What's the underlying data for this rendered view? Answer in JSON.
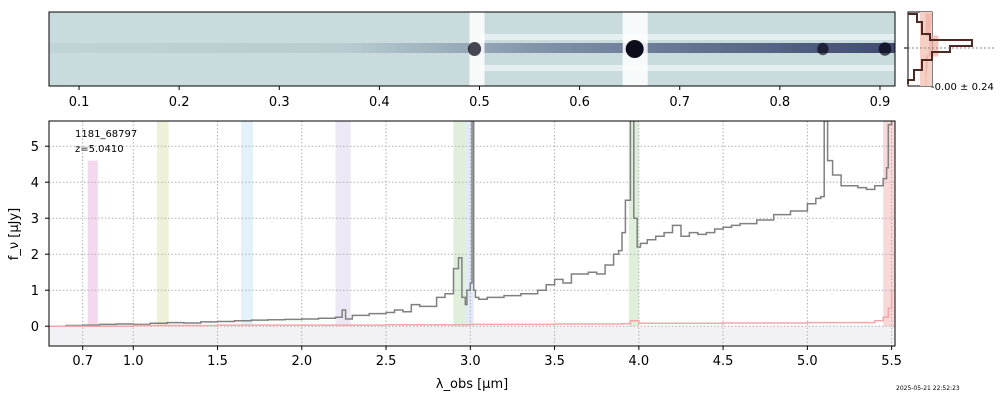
{
  "chart_data": [
    {
      "type": "image",
      "name": "2D spectrum",
      "x_ticks": [
        {
          "value": 0.1,
          "label": "0.1"
        },
        {
          "value": 0.2,
          "label": "0.2"
        },
        {
          "value": 0.3,
          "label": "0.3"
        },
        {
          "value": 0.4,
          "label": "0.4"
        },
        {
          "value": 0.5,
          "label": "0.5"
        },
        {
          "value": 0.6,
          "label": "0.6"
        },
        {
          "value": 0.7,
          "label": "0.7"
        },
        {
          "value": 0.8,
          "label": "0.8"
        },
        {
          "value": 0.9,
          "label": "0.9"
        }
      ],
      "xlim": [
        0.07,
        0.915
      ],
      "features": [
        {
          "x": 0.495,
          "strength": 0.6
        },
        {
          "x": 0.655,
          "strength": 1.0
        },
        {
          "x": 0.843,
          "strength": 0.45
        },
        {
          "x": 0.905,
          "strength": 0.55
        }
      ]
    },
    {
      "type": "histogram",
      "name": "residual histogram",
      "label": "-0.00 ± 0.24"
    },
    {
      "type": "line",
      "name": "1D spectrum",
      "title_id": "1181_68797",
      "redshift": "z=5.0410",
      "xlabel": "λ_obs [μm]",
      "ylabel": "f_ν [μJy]",
      "xlim": [
        0.5,
        5.52
      ],
      "ylim": [
        -0.55,
        5.7
      ],
      "x_ticks": [
        {
          "value": 0.7,
          "label": "0.7"
        },
        {
          "value": 1.0,
          "label": "1.0"
        },
        {
          "value": 1.5,
          "label": "1.5"
        },
        {
          "value": 2.0,
          "label": "2.0"
        },
        {
          "value": 2.5,
          "label": "2.5"
        },
        {
          "value": 3.0,
          "label": "3.0"
        },
        {
          "value": 3.5,
          "label": "3.5"
        },
        {
          "value": 4.0,
          "label": "4.0"
        },
        {
          "value": 4.5,
          "label": "4.5"
        },
        {
          "value": 5.0,
          "label": "5.0"
        },
        {
          "value": 5.5,
          "label": "5.5"
        }
      ],
      "y_ticks": [
        0,
        1,
        2,
        3,
        4,
        5
      ],
      "bands": [
        {
          "from": 0.73,
          "to": 0.79,
          "top": 4.6,
          "color": "#e6a8d8"
        },
        {
          "from": 1.14,
          "to": 1.21,
          "top": 5.7,
          "color": "#d9e0a8"
        },
        {
          "from": 1.64,
          "to": 1.71,
          "top": 5.7,
          "color": "#bfe0f5"
        },
        {
          "from": 2.2,
          "to": 2.29,
          "top": 5.7,
          "color": "#d6cde8"
        },
        {
          "from": 2.9,
          "to": 2.97,
          "top": 5.7,
          "color": "#b8dcb0"
        },
        {
          "from": 2.97,
          "to": 3.02,
          "top": 5.7,
          "color": "#bcd0ea"
        },
        {
          "from": 3.94,
          "to": 4.0,
          "top": 5.7,
          "color": "#b8dcb0"
        },
        {
          "from": 5.45,
          "to": 5.52,
          "top": 5.7,
          "color": "#f0a8a8"
        }
      ],
      "series": [
        {
          "name": "flux",
          "color": "#808080",
          "x": [
            0.5,
            0.6,
            0.7,
            0.8,
            0.9,
            1.0,
            1.1,
            1.2,
            1.3,
            1.4,
            1.5,
            1.6,
            1.7,
            1.8,
            1.9,
            2.0,
            2.1,
            2.2,
            2.24,
            2.26,
            2.3,
            2.4,
            2.5,
            2.55,
            2.6,
            2.65,
            2.7,
            2.8,
            2.85,
            2.9,
            2.93,
            2.95,
            2.97,
            2.98,
            3.0,
            3.01,
            3.02,
            3.03,
            3.05,
            3.1,
            3.2,
            3.3,
            3.4,
            3.45,
            3.5,
            3.55,
            3.6,
            3.7,
            3.75,
            3.8,
            3.85,
            3.88,
            3.9,
            3.92,
            3.95,
            3.97,
            3.99,
            4.01,
            4.05,
            4.1,
            4.15,
            4.2,
            4.25,
            4.3,
            4.35,
            4.4,
            4.45,
            4.5,
            4.55,
            4.6,
            4.7,
            4.8,
            4.9,
            5.0,
            5.05,
            5.08,
            5.1,
            5.12,
            5.15,
            5.2,
            5.3,
            5.35,
            5.4,
            5.45,
            5.47,
            5.48,
            5.5,
            5.52
          ],
          "y": [
            0.0,
            0.02,
            0.03,
            0.05,
            0.06,
            0.05,
            0.08,
            0.1,
            0.09,
            0.12,
            0.13,
            0.15,
            0.17,
            0.18,
            0.19,
            0.2,
            0.22,
            0.25,
            0.45,
            0.2,
            0.3,
            0.35,
            0.38,
            0.45,
            0.4,
            0.6,
            0.55,
            0.8,
            0.9,
            1.6,
            1.9,
            0.8,
            0.6,
            1.0,
            1.2,
            5.8,
            1.0,
            0.8,
            0.75,
            0.8,
            0.85,
            0.9,
            1.0,
            1.15,
            1.3,
            1.2,
            1.45,
            1.5,
            1.45,
            1.7,
            2.0,
            2.1,
            2.6,
            3.5,
            5.8,
            3.0,
            2.2,
            2.3,
            2.4,
            2.5,
            2.6,
            2.8,
            2.5,
            2.6,
            2.55,
            2.6,
            2.7,
            2.75,
            2.8,
            2.85,
            2.95,
            3.1,
            3.2,
            3.4,
            3.55,
            3.6,
            5.7,
            4.6,
            4.2,
            3.9,
            3.85,
            3.8,
            3.9,
            4.1,
            4.4,
            5.6,
            5.75,
            5.8
          ]
        },
        {
          "name": "uncertainty",
          "color": "#f2a8a8",
          "x": [
            0.5,
            1.0,
            1.5,
            2.0,
            2.5,
            3.0,
            3.5,
            3.9,
            3.95,
            4.0,
            4.5,
            5.0,
            5.4,
            5.45,
            5.48,
            5.5
          ],
          "y": [
            0.0,
            0.02,
            0.03,
            0.03,
            0.04,
            0.05,
            0.06,
            0.07,
            0.15,
            0.08,
            0.09,
            0.1,
            0.15,
            0.25,
            0.5,
            1.0
          ]
        }
      ]
    }
  ],
  "timestamp": "2025-05-21 22:52:23"
}
